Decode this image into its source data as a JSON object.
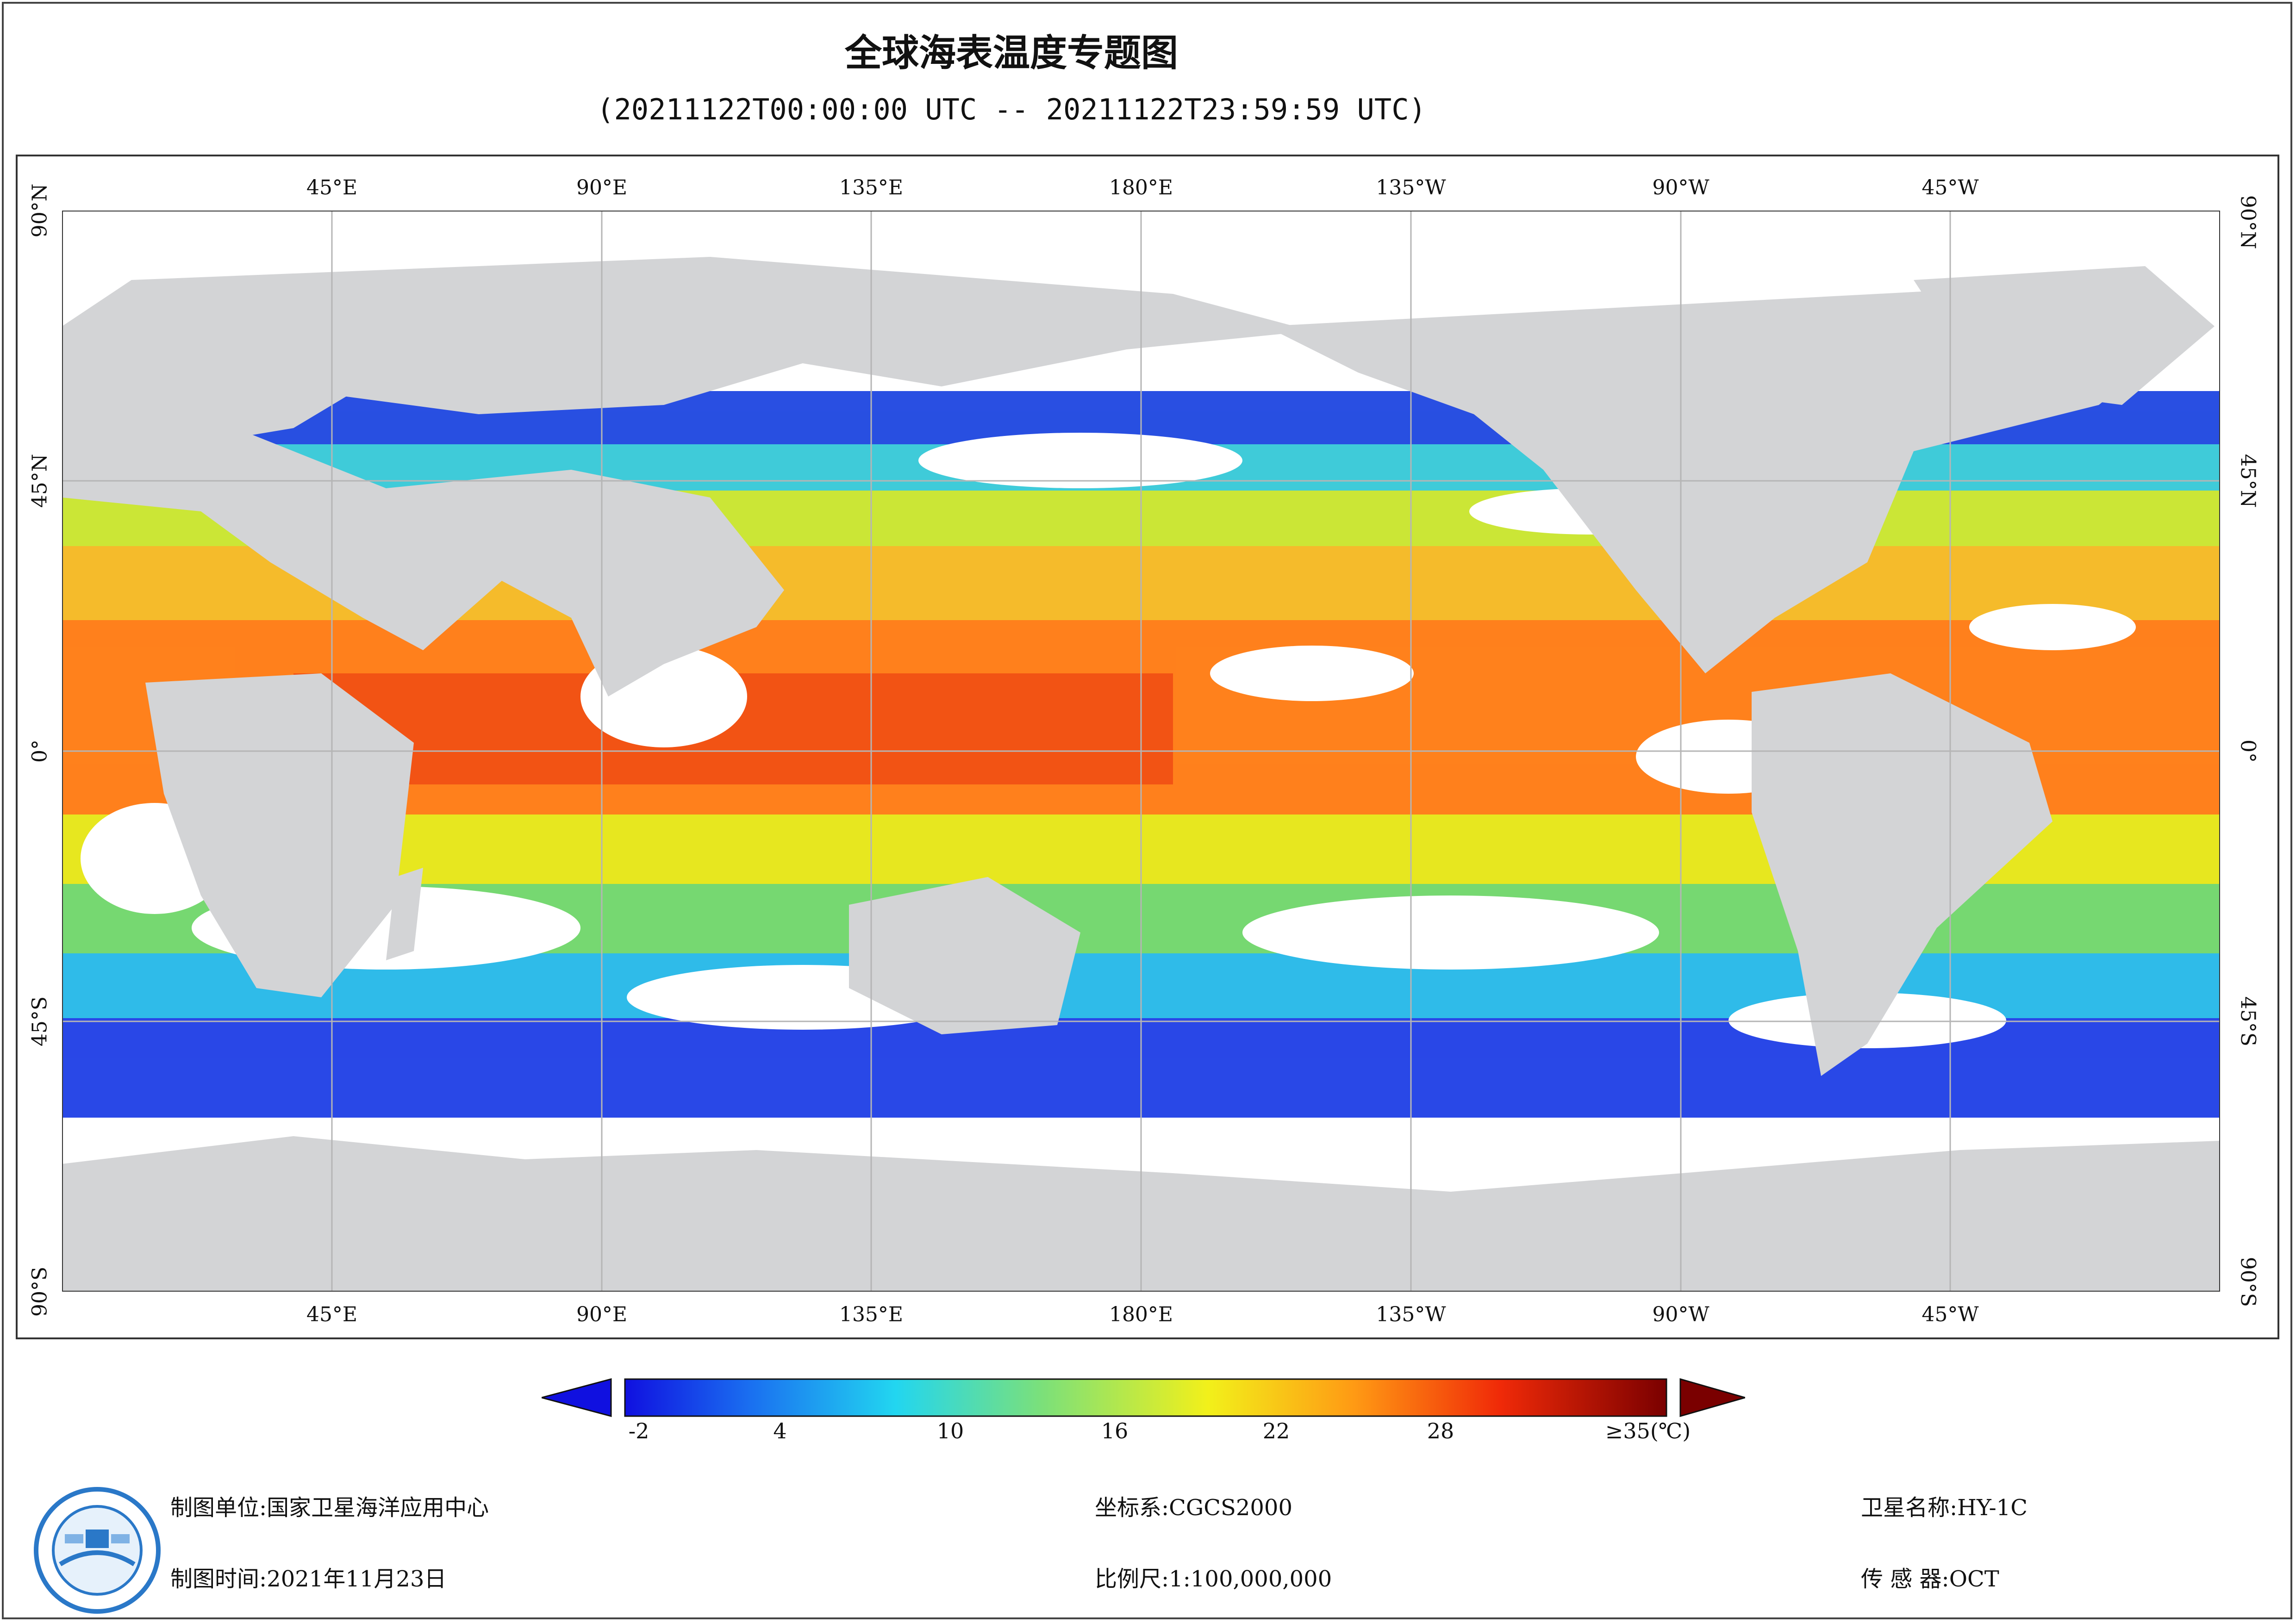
{
  "title": "全球海表温度专题图",
  "subtitle": "(20211122T00:00:00 UTC -- 20211122T23:59:59 UTC)",
  "map": {
    "lon_ticks": [
      "45°E",
      "90°E",
      "135°E",
      "180°E",
      "135°W",
      "90°W",
      "45°W"
    ],
    "lat_ticks": [
      "90°N",
      "45°N",
      "0°",
      "45°S",
      "90°S"
    ],
    "colors": {
      "land": "#d3d4d6",
      "cloud": "#ffffff",
      "grid": "#b5b5b5"
    }
  },
  "colorbar": {
    "labels": [
      "-2",
      "4",
      "10",
      "16",
      "22",
      "28",
      "≥35(℃)"
    ],
    "min": -2,
    "max": 35,
    "unit": "℃",
    "under_color": "#1010e0",
    "over_color": "#7a0000"
  },
  "footer": {
    "unit_label": "制图单位:国家卫星海洋应用中心",
    "time_label": "制图时间:2021年11月23日",
    "crs_label": "坐标系:CGCS2000",
    "scale_label": "比例尺:1:100,000,000",
    "satellite_label": "卫星名称:HY-1C",
    "sensor_label": "传 感 器:OCT"
  }
}
